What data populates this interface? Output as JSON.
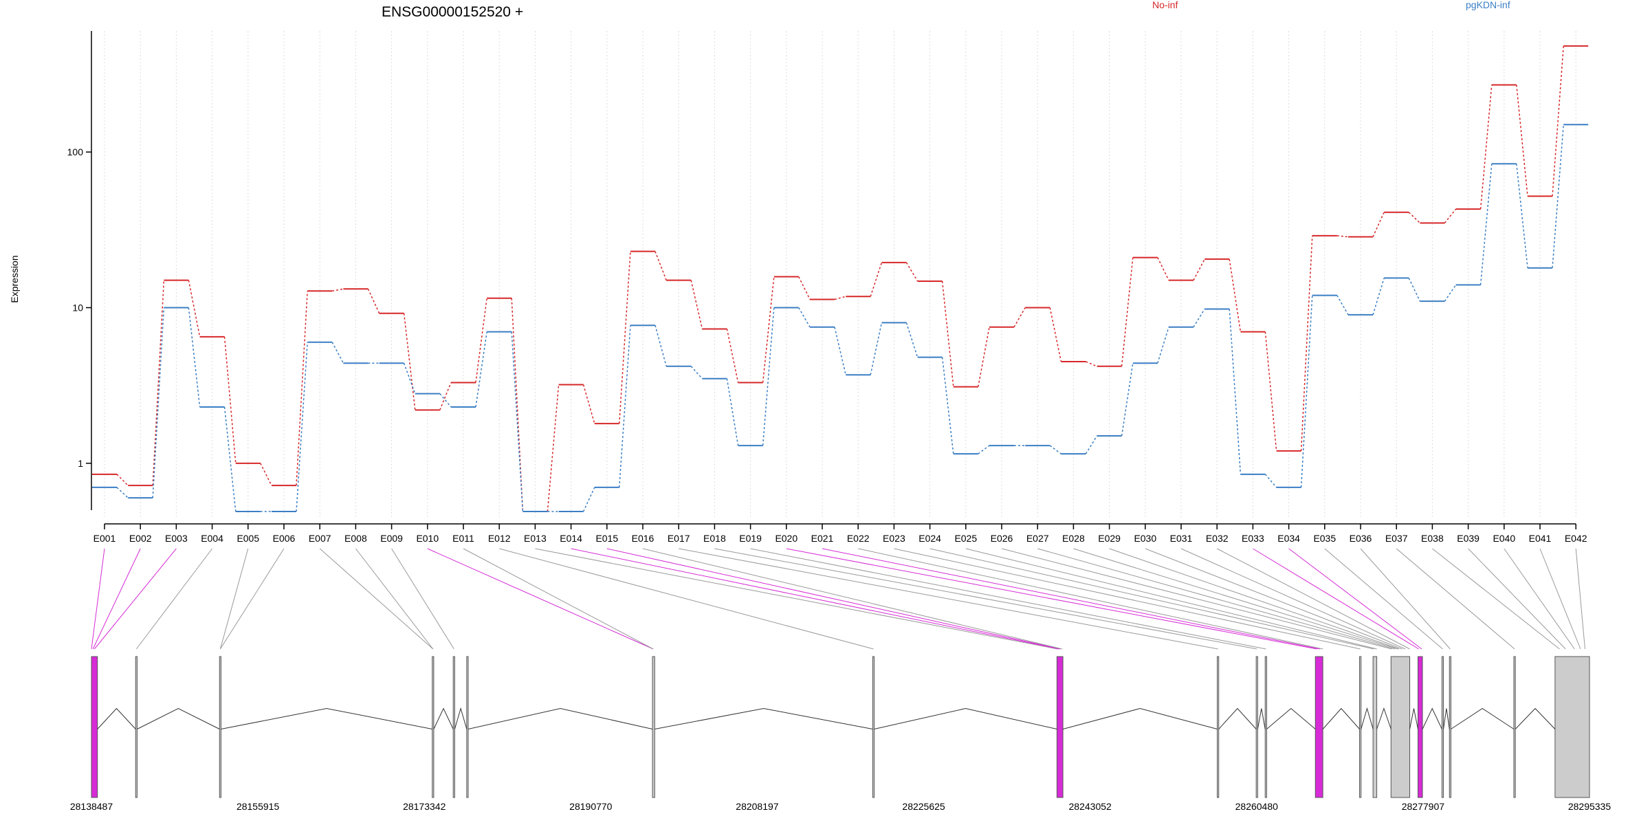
{
  "chart_data": {
    "type": "line",
    "title": "ENSG00000152520 +",
    "ylabel": "Expression",
    "xlabel": "",
    "y_scale": "log",
    "y_ticks": [
      1,
      10,
      100
    ],
    "y_tick_labels": [
      "1",
      "10",
      "100"
    ],
    "ylim": [
      0.5,
      600
    ],
    "grid": "vertical dotted lines at each exon",
    "legend_placement": "top",
    "categories": [
      "E001",
      "E002",
      "E003",
      "E004",
      "E005",
      "E006",
      "E007",
      "E008",
      "E009",
      "E010",
      "E011",
      "E012",
      "E013",
      "E014",
      "E015",
      "E016",
      "E017",
      "E018",
      "E019",
      "E020",
      "E021",
      "E022",
      "E023",
      "E024",
      "E025",
      "E026",
      "E027",
      "E028",
      "E029",
      "E030",
      "E031",
      "E032",
      "E033",
      "E034",
      "E035",
      "E036",
      "E037",
      "E038",
      "E039",
      "E040",
      "E041",
      "E042"
    ],
    "series": [
      {
        "name": "No-inf",
        "color": "#d62728",
        "values": [
          0.85,
          0.72,
          15,
          6.5,
          1,
          0.72,
          12.8,
          13.2,
          9.2,
          2.2,
          3.3,
          11.5,
          0.49,
          3.2,
          1.8,
          23,
          15,
          7.3,
          3.3,
          15.8,
          11.3,
          11.8,
          19.5,
          14.8,
          3.1,
          7.5,
          10,
          4.5,
          4.2,
          21,
          15,
          20.5,
          7,
          1.2,
          29,
          28.5,
          41,
          35,
          43,
          270,
          52,
          480
        ]
      },
      {
        "name": "pgKDN-inf",
        "color": "#3a7ec4",
        "values": [
          0.7,
          0.6,
          10,
          2.3,
          0.49,
          0.49,
          6,
          4.4,
          4.4,
          2.8,
          2.3,
          7,
          0.49,
          0.49,
          0.7,
          7.7,
          4.2,
          3.5,
          1.3,
          10,
          7.5,
          3.7,
          8,
          4.8,
          1.15,
          1.3,
          1.3,
          1.15,
          1.5,
          4.4,
          7.5,
          9.8,
          0.85,
          0.7,
          12,
          9,
          15.5,
          11,
          14,
          84,
          18,
          150
        ]
      }
    ],
    "gene_model": {
      "coordinate_labels": [
        "28138487",
        "28155915",
        "28173342",
        "28190770",
        "28208197",
        "28225625",
        "28243052",
        "28260480",
        "28277907",
        "28295335"
      ],
      "genomic_range": [
        28138487,
        28295335
      ],
      "highlight_color": "#d62bd6",
      "connector_color": "#999999",
      "exon_fill": "#cccccc",
      "exons": [
        {
          "id": "E001",
          "position": 0.0,
          "highlight": true
        },
        {
          "id": "E002",
          "position": 0.001,
          "highlight": true
        },
        {
          "id": "E003",
          "position": 0.002,
          "highlight": true
        },
        {
          "id": "E004",
          "position": 0.03,
          "highlight": false
        },
        {
          "id": "E005",
          "position": 0.086,
          "highlight": false
        },
        {
          "id": "E006",
          "position": 0.086,
          "highlight": false
        },
        {
          "id": "E007",
          "position": 0.228,
          "highlight": false
        },
        {
          "id": "E008",
          "position": 0.228,
          "highlight": false
        },
        {
          "id": "E009",
          "position": 0.242,
          "highlight": false
        },
        {
          "id": "E010",
          "position": 0.375,
          "highlight": true
        },
        {
          "id": "E011",
          "position": 0.375,
          "highlight": false
        },
        {
          "id": "E012",
          "position": 0.522,
          "highlight": false
        },
        {
          "id": "E013",
          "position": 0.645,
          "highlight": false
        },
        {
          "id": "E014",
          "position": 0.646,
          "highlight": true
        },
        {
          "id": "E015",
          "position": 0.647,
          "highlight": true
        },
        {
          "id": "E016",
          "position": 0.648,
          "highlight": false
        },
        {
          "id": "E017",
          "position": 0.752,
          "highlight": false
        },
        {
          "id": "E018",
          "position": 0.778,
          "highlight": false
        },
        {
          "id": "E019",
          "position": 0.784,
          "highlight": false
        },
        {
          "id": "E020",
          "position": 0.818,
          "highlight": true
        },
        {
          "id": "E021",
          "position": 0.82,
          "highlight": true
        },
        {
          "id": "E022",
          "position": 0.822,
          "highlight": false
        },
        {
          "id": "E023",
          "position": 0.847,
          "highlight": false
        },
        {
          "id": "E024",
          "position": 0.856,
          "highlight": false
        },
        {
          "id": "E025",
          "position": 0.858,
          "highlight": false
        },
        {
          "id": "E026",
          "position": 0.868,
          "highlight": false
        },
        {
          "id": "E027",
          "position": 0.87,
          "highlight": false
        },
        {
          "id": "E028",
          "position": 0.872,
          "highlight": false
        },
        {
          "id": "E029",
          "position": 0.873,
          "highlight": false
        },
        {
          "id": "E030",
          "position": 0.875,
          "highlight": false
        },
        {
          "id": "E031",
          "position": 0.877,
          "highlight": false
        },
        {
          "id": "E032",
          "position": 0.88,
          "highlight": false
        },
        {
          "id": "E033",
          "position": 0.886,
          "highlight": true
        },
        {
          "id": "E034",
          "position": 0.888,
          "highlight": true
        },
        {
          "id": "E035",
          "position": 0.902,
          "highlight": false
        },
        {
          "id": "E036",
          "position": 0.907,
          "highlight": false
        },
        {
          "id": "E037",
          "position": 0.95,
          "highlight": false
        },
        {
          "id": "E038",
          "position": 0.98,
          "highlight": false
        },
        {
          "id": "E039",
          "position": 0.984,
          "highlight": false
        },
        {
          "id": "E040",
          "position": 0.99,
          "highlight": false
        },
        {
          "id": "E041",
          "position": 0.994,
          "highlight": false
        },
        {
          "id": "E042",
          "position": 0.997,
          "highlight": false
        }
      ],
      "exon_blocks": [
        {
          "start": 0.0,
          "end": 0.004,
          "highlight": true
        },
        {
          "start": 0.0295,
          "end": 0.0305,
          "highlight": false
        },
        {
          "start": 0.0855,
          "end": 0.0865,
          "highlight": false
        },
        {
          "start": 0.2275,
          "end": 0.2285,
          "highlight": false
        },
        {
          "start": 0.2415,
          "end": 0.2425,
          "highlight": false
        },
        {
          "start": 0.2505,
          "end": 0.2515,
          "highlight": false
        },
        {
          "start": 0.3745,
          "end": 0.376,
          "highlight": false
        },
        {
          "start": 0.5215,
          "end": 0.5225,
          "highlight": false
        },
        {
          "start": 0.6445,
          "end": 0.6485,
          "highlight": true
        },
        {
          "start": 0.7515,
          "end": 0.7525,
          "highlight": false
        },
        {
          "start": 0.7775,
          "end": 0.7785,
          "highlight": false
        },
        {
          "start": 0.7835,
          "end": 0.7845,
          "highlight": false
        },
        {
          "start": 0.817,
          "end": 0.822,
          "highlight": true
        },
        {
          "start": 0.8465,
          "end": 0.8475,
          "highlight": false
        },
        {
          "start": 0.8555,
          "end": 0.858,
          "highlight": false
        },
        {
          "start": 0.8675,
          "end": 0.88,
          "highlight": false
        },
        {
          "start": 0.8855,
          "end": 0.8885,
          "highlight": true
        },
        {
          "start": 0.9015,
          "end": 0.9025,
          "highlight": false
        },
        {
          "start": 0.9065,
          "end": 0.9075,
          "highlight": false
        },
        {
          "start": 0.9495,
          "end": 0.9505,
          "highlight": false
        },
        {
          "start": 0.977,
          "end": 1.0,
          "highlight": false
        }
      ]
    }
  }
}
